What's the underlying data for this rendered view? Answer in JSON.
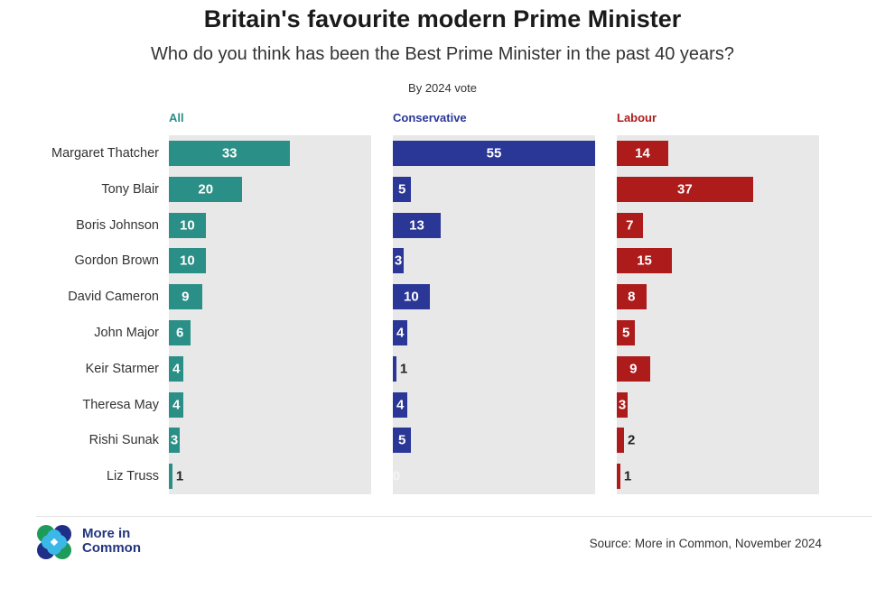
{
  "chart_data": {
    "type": "bar",
    "orientation": "horizontal",
    "title": "Britain's favourite modern Prime Minister",
    "subtitle": "Who do you think has been the Best Prime Minister in the past 40 years?",
    "note": "By 2024 vote",
    "categories": [
      "Margaret Thatcher",
      "Tony Blair",
      "Boris Johnson",
      "Gordon Brown",
      "David Cameron",
      "John Major",
      "Keir Starmer",
      "Theresa May",
      "Rishi Sunak",
      "Liz Truss"
    ],
    "xlim": [
      0,
      55
    ],
    "grid": false,
    "series": [
      {
        "name": "All",
        "color": "#2a8f86",
        "values": [
          33,
          20,
          10,
          10,
          9,
          6,
          4,
          4,
          3,
          1
        ]
      },
      {
        "name": "Conservative",
        "color": "#2a3797",
        "values": [
          55,
          5,
          13,
          3,
          10,
          4,
          1,
          4,
          5,
          0
        ]
      },
      {
        "name": "Labour",
        "color": "#ad1b1b",
        "values": [
          14,
          37,
          7,
          15,
          8,
          5,
          9,
          3,
          2,
          1
        ]
      }
    ]
  },
  "footer": {
    "logo_text_line1": "More in",
    "logo_text_line2": "Common",
    "source": "Source: More in Common, November 2024"
  }
}
